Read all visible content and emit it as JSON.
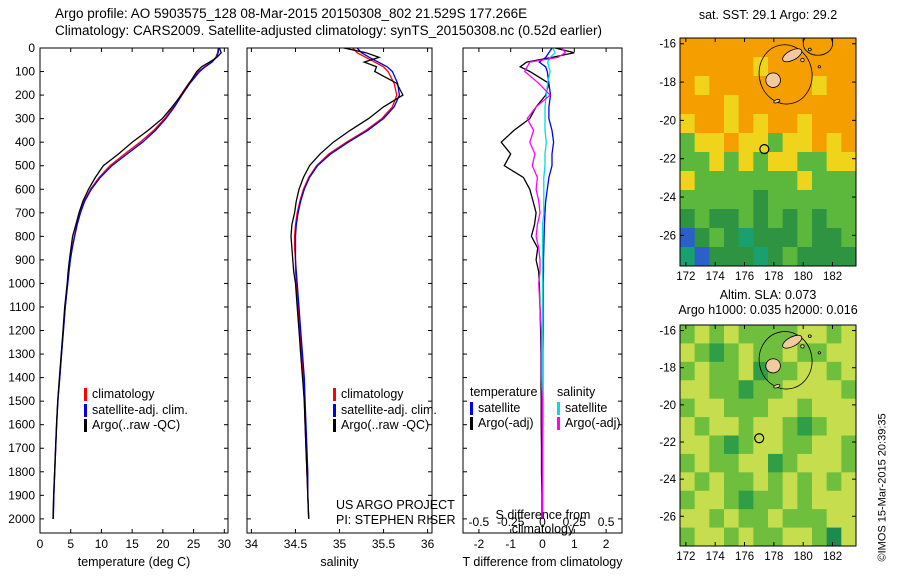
{
  "header": {
    "line1": "Argo profile: AO 5903575_128 08-Mar-2015 20150308_802 21.529S 177.266E",
    "line2": "Climatology: CARS2009. Satellite-adjusted climatology: synTS_20150308.nc (0.52d earlier)"
  },
  "legends": {
    "profile": {
      "items": [
        {
          "label": "climatology",
          "color": "#ff0000"
        },
        {
          "label": "satellite-adj. clim.",
          "color": "#0000ee"
        },
        {
          "label": "Argo(..raw -QC)",
          "color": "#000000"
        }
      ]
    },
    "diff": {
      "temperature": {
        "header": "temperature",
        "items": [
          {
            "label": "satellite",
            "color": "#0000ee"
          },
          {
            "label": "Argo(-adj)",
            "color": "#000000"
          }
        ]
      },
      "salinity": {
        "header": "salinity",
        "items": [
          {
            "label": "satellite",
            "color": "#00dddd"
          },
          {
            "label": "Argo(-adj)",
            "color": "#ff00ff"
          }
        ]
      }
    }
  },
  "notes": {
    "project": "US ARGO PROJECT",
    "pi": "PI: STEPHEN RISER",
    "credit": "©IMOS 15-Mar-2015 20:39:35"
  },
  "chart_data": [
    {
      "id": "temperature-profile",
      "type": "line",
      "xlabel": "temperature (deg C)",
      "xlim": [
        0,
        30.6
      ],
      "ylim": [
        0,
        2060
      ],
      "xticks": [
        0,
        5,
        10,
        15,
        20,
        25,
        30
      ],
      "yticks": [
        0,
        100,
        200,
        300,
        400,
        500,
        600,
        700,
        800,
        900,
        1000,
        1100,
        1200,
        1300,
        1400,
        1500,
        1600,
        1700,
        1800,
        1900,
        2000
      ],
      "depth": [
        0,
        20,
        40,
        60,
        80,
        100,
        150,
        200,
        250,
        300,
        350,
        400,
        450,
        500,
        550,
        600,
        650,
        700,
        750,
        800,
        850,
        900,
        950,
        1000,
        1100,
        1200,
        1300,
        1400,
        1500,
        1600,
        1700,
        1800,
        1900,
        2000
      ],
      "series": [
        {
          "name": "climatology",
          "color": "#ff0000",
          "values": [
            29.0,
            28.9,
            28.6,
            27.9,
            26.8,
            25.8,
            24.2,
            22.9,
            21.7,
            20.3,
            18.5,
            16.3,
            13.8,
            11.4,
            9.6,
            8.2,
            7.2,
            6.5,
            6.0,
            5.6,
            5.2,
            4.9,
            4.7,
            4.5,
            4.1,
            3.8,
            3.5,
            3.2,
            2.9,
            2.7,
            2.55,
            2.4,
            2.25,
            2.15
          ]
        },
        {
          "name": "satellite-adj-clim",
          "color": "#0000ee",
          "values": [
            29.1,
            29.0,
            28.7,
            28.0,
            26.9,
            26.0,
            24.4,
            23.1,
            21.9,
            20.5,
            18.8,
            16.7,
            14.2,
            11.7,
            9.8,
            8.35,
            7.3,
            6.6,
            6.05,
            5.65,
            5.25,
            4.95,
            4.72,
            4.52,
            4.12,
            3.82,
            3.52,
            3.22,
            2.92,
            2.72,
            2.56,
            2.41,
            2.26,
            2.16
          ]
        },
        {
          "name": "argo-raw",
          "color": "#000000",
          "values": [
            29.2,
            29.5,
            28.8,
            27.6,
            26.3,
            25.5,
            24.3,
            23.0,
            21.5,
            19.9,
            17.6,
            15.0,
            12.8,
            10.3,
            9.0,
            7.9,
            7.0,
            6.35,
            5.85,
            5.3,
            5.05,
            4.78,
            4.58,
            4.42,
            4.02,
            3.74,
            3.45,
            3.16,
            2.88,
            2.68,
            2.52,
            2.37,
            2.22,
            2.12
          ]
        }
      ]
    },
    {
      "id": "salinity-profile",
      "type": "line",
      "xlabel": "salinity",
      "xlim": [
        33.95,
        36.05
      ],
      "ylim": [
        0,
        2060
      ],
      "xticks": [
        34,
        34.5,
        35,
        35.5,
        36
      ],
      "yticks": [
        0,
        100,
        200,
        300,
        400,
        500,
        600,
        700,
        800,
        900,
        1000,
        1100,
        1200,
        1300,
        1400,
        1500,
        1600,
        1700,
        1800,
        1900,
        2000
      ],
      "depth": [
        0,
        20,
        40,
        60,
        80,
        100,
        150,
        200,
        250,
        300,
        350,
        400,
        450,
        500,
        550,
        600,
        650,
        700,
        750,
        800,
        850,
        900,
        950,
        1000,
        1100,
        1200,
        1300,
        1400,
        1500,
        1600,
        1700,
        1800,
        1900,
        2000
      ],
      "series": [
        {
          "name": "climatology",
          "color": "#ff0000",
          "values": [
            35.15,
            35.2,
            35.3,
            35.4,
            35.5,
            35.55,
            35.62,
            35.65,
            35.6,
            35.48,
            35.3,
            35.08,
            34.88,
            34.74,
            34.65,
            34.59,
            34.55,
            34.52,
            34.5,
            34.49,
            34.49,
            34.5,
            34.5,
            34.51,
            34.53,
            34.55,
            34.57,
            34.59,
            34.6,
            34.61,
            34.62,
            34.63,
            34.64,
            34.65
          ]
        },
        {
          "name": "satellite-adj-clim",
          "color": "#0000ee",
          "values": [
            35.2,
            35.25,
            35.34,
            35.44,
            35.54,
            35.6,
            35.66,
            35.68,
            35.62,
            35.5,
            35.32,
            35.1,
            34.9,
            34.75,
            34.66,
            34.6,
            34.56,
            34.53,
            34.51,
            34.5,
            34.5,
            34.5,
            34.51,
            34.52,
            34.54,
            34.56,
            34.58,
            34.6,
            34.61,
            34.62,
            34.63,
            34.64,
            34.64,
            34.65
          ]
        },
        {
          "name": "argo-raw",
          "color": "#000000",
          "values": [
            35.05,
            35.3,
            35.45,
            35.28,
            35.42,
            35.4,
            35.65,
            35.72,
            35.5,
            35.33,
            35.12,
            34.93,
            34.78,
            34.66,
            34.59,
            34.54,
            34.51,
            34.49,
            34.46,
            34.45,
            34.46,
            34.47,
            34.48,
            34.5,
            34.52,
            34.54,
            34.56,
            34.58,
            34.6,
            34.61,
            34.62,
            34.63,
            34.64,
            34.65
          ]
        }
      ]
    },
    {
      "id": "difference-profile",
      "type": "line",
      "xlabel": "T difference from climatology",
      "xlabel2": "S difference from climatology",
      "xlim": [
        -2.5,
        2.5
      ],
      "ylim": [
        0,
        2060
      ],
      "xticks": [
        -2,
        -1,
        0,
        1,
        2
      ],
      "s_ticks": [
        -0.5,
        -0.25,
        0,
        0.25,
        0.5
      ],
      "s_scale": 4,
      "yticks": [
        0,
        100,
        200,
        300,
        400,
        500,
        600,
        700,
        800,
        900,
        1000,
        1100,
        1200,
        1300,
        1400,
        1500,
        1600,
        1700,
        1800,
        1900,
        2000
      ],
      "depth": [
        0,
        20,
        40,
        60,
        80,
        100,
        150,
        200,
        250,
        300,
        350,
        400,
        450,
        500,
        550,
        600,
        650,
        700,
        750,
        800,
        850,
        900,
        950,
        1000,
        1100,
        1200,
        1300,
        1400,
        1500,
        1600,
        1700,
        1800,
        1900,
        2000
      ],
      "series": [
        {
          "name": "t-diff-argo",
          "color": "#000000",
          "scale": 1,
          "values": [
            0.4,
            1.0,
            0.3,
            -0.5,
            -0.7,
            -0.4,
            0.2,
            0.1,
            -0.2,
            -0.4,
            -0.9,
            -1.3,
            -1.0,
            -1.2,
            -0.6,
            -0.4,
            -0.3,
            -0.2,
            -0.25,
            -0.35,
            -0.15,
            -0.2,
            -0.12,
            -0.1,
            -0.08,
            -0.06,
            -0.05,
            -0.05,
            -0.04,
            -0.04,
            -0.03,
            -0.03,
            -0.02,
            -0.02
          ]
        },
        {
          "name": "t-diff-satellite",
          "color": "#0000ee",
          "scale": 1,
          "values": [
            0.3,
            0.2,
            0.1,
            -0.1,
            0.1,
            0.15,
            0.2,
            0.25,
            0.2,
            0.2,
            0.3,
            0.35,
            0.3,
            0.3,
            0.2,
            0.15,
            0.1,
            0.08,
            0.06,
            0.05,
            0.04,
            0.03,
            0.03,
            0.02,
            0.02,
            0.02,
            0.01,
            0.01,
            0.01,
            0.01,
            0.0,
            0.0,
            0.0,
            0.0
          ]
        },
        {
          "name": "s-diff-satellite",
          "color": "#00dddd",
          "scale": 4,
          "values": [
            0.08,
            0.1,
            0.06,
            0.04,
            0.05,
            0.06,
            0.04,
            0.03,
            0.02,
            0.02,
            0.02,
            0.03,
            0.02,
            0.02,
            0.01,
            0.01,
            0.01,
            0.01,
            0.0,
            0.0,
            0.0,
            0.0,
            0.0,
            0.0,
            0.0,
            0.0,
            0.0,
            0.0,
            0.0,
            0.0,
            0.0,
            0.0,
            0.0,
            0.0
          ]
        },
        {
          "name": "s-diff-argo",
          "color": "#ff00ff",
          "scale": 4,
          "values": [
            0.15,
            0.18,
            0.12,
            -0.1,
            -0.12,
            -0.14,
            -0.03,
            0.06,
            -0.05,
            -0.12,
            -0.07,
            -0.1,
            -0.06,
            -0.08,
            -0.04,
            -0.05,
            -0.03,
            -0.02,
            -0.04,
            -0.05,
            -0.03,
            -0.02,
            -0.02,
            -0.03,
            -0.02,
            -0.01,
            -0.01,
            -0.01,
            0.0,
            0.0,
            0.0,
            0.0,
            0.0,
            0.0
          ]
        }
      ]
    },
    {
      "id": "sst-map",
      "type": "heatmap",
      "title": "sat. SST: 29.1 Argo: 29.2",
      "xlim": [
        171.6,
        183.6
      ],
      "ylim": [
        -15.7,
        -27.6
      ],
      "xticks": [
        172,
        174,
        176,
        178,
        180,
        182
      ],
      "yticks": [
        -16,
        -18,
        -20,
        -22,
        -24,
        -26
      ],
      "palette": {
        "O": "#f59e00",
        "y": "#f0d41c",
        "g": "#5cb83c",
        "G": "#2f9441",
        "t": "#19a06e",
        "B": "#2a60c8"
      },
      "grid": [
        "OOOOOOOOOOOO",
        "OOOOOyOOOOOO",
        "OyOOOOOOOyOO",
        "OOOyOOOOOOOO",
        "yOOyOyOOyOOO",
        "gyyOyygyyOyO",
        "ggygygyyggyy",
        "ygggggggyggg",
        "gggggGgggggg",
        "GgGGgGgGgGgg",
        "BGgGtGGGgGGg",
        "tBGGGtGgGGGG"
      ],
      "island_color": "#f2c9a0",
      "islands": [
        {
          "lon": 177.95,
          "lat": -17.9,
          "rx": 0.5,
          "ry": 0.38,
          "rot": -15
        },
        {
          "lon": 179.25,
          "lat": -16.6,
          "rx": 0.72,
          "ry": 0.25,
          "rot": -28
        },
        {
          "lon": 178.2,
          "lat": -19.0,
          "rx": 0.22,
          "ry": 0.08,
          "rot": -20
        },
        {
          "lon": 179.95,
          "lat": -16.85,
          "rx": 0.12,
          "ry": 0.09,
          "rot": 0
        },
        {
          "lon": 180.45,
          "lat": -16.3,
          "rx": 0.1,
          "ry": 0.07,
          "rot": 0
        },
        {
          "lon": 181.1,
          "lat": -17.2,
          "rx": 0.08,
          "ry": 0.06,
          "rot": 0
        }
      ],
      "contours": [
        {
          "lon": 178.8,
          "lat": -17.6,
          "rx": 1.8,
          "ry": 1.55,
          "rot": -10
        },
        {
          "lon": 181.0,
          "lat": -16.0,
          "rx": 1.0,
          "ry": 0.6,
          "rot": 0
        }
      ],
      "marker": {
        "lon": 177.35,
        "lat": -21.5
      }
    },
    {
      "id": "sla-map",
      "type": "heatmap",
      "title1": "Altim. SLA: 0.073",
      "title2": "Argo h1000: 0.035 h2000: 0.016",
      "xlim": [
        171.6,
        183.6
      ],
      "ylim": [
        -15.7,
        -27.6
      ],
      "xticks": [
        172,
        174,
        176,
        178,
        180,
        182
      ],
      "yticks": [
        -16,
        -18,
        -20,
        -22,
        -24,
        -26
      ],
      "palette": {
        "l": "#c6de4e",
        "g": "#6fbe3e",
        "G": "#2f9e46",
        "d": "#1d8a50"
      },
      "grid": [
        "glglggggllgl",
        "lgGglgglggll",
        "glgglGggllgl",
        "llggGggllllg",
        "gllgggllglll",
        "lgllgllgGgll",
        "llgGgllggllg",
        "glggllGglllg",
        "lglgglglglgl",
        "gllgGgglglll",
        "llglgglgggll",
        "gllglggllgdl"
      ],
      "island_color": "#f2c9a0",
      "islands": [
        {
          "lon": 177.95,
          "lat": -17.9,
          "rx": 0.5,
          "ry": 0.38,
          "rot": -15
        },
        {
          "lon": 179.25,
          "lat": -16.6,
          "rx": 0.72,
          "ry": 0.25,
          "rot": -28
        },
        {
          "lon": 178.2,
          "lat": -19.0,
          "rx": 0.22,
          "ry": 0.08,
          "rot": -20
        },
        {
          "lon": 179.95,
          "lat": -16.85,
          "rx": 0.12,
          "ry": 0.09,
          "rot": 0
        },
        {
          "lon": 180.45,
          "lat": -16.3,
          "rx": 0.1,
          "ry": 0.07,
          "rot": 0
        },
        {
          "lon": 181.1,
          "lat": -17.2,
          "rx": 0.08,
          "ry": 0.06,
          "rot": 0
        }
      ],
      "contours": [
        {
          "lon": 178.8,
          "lat": -17.6,
          "rx": 1.8,
          "ry": 1.55,
          "rot": -10
        }
      ],
      "marker": {
        "lon": 177.0,
        "lat": -21.8
      }
    }
  ]
}
